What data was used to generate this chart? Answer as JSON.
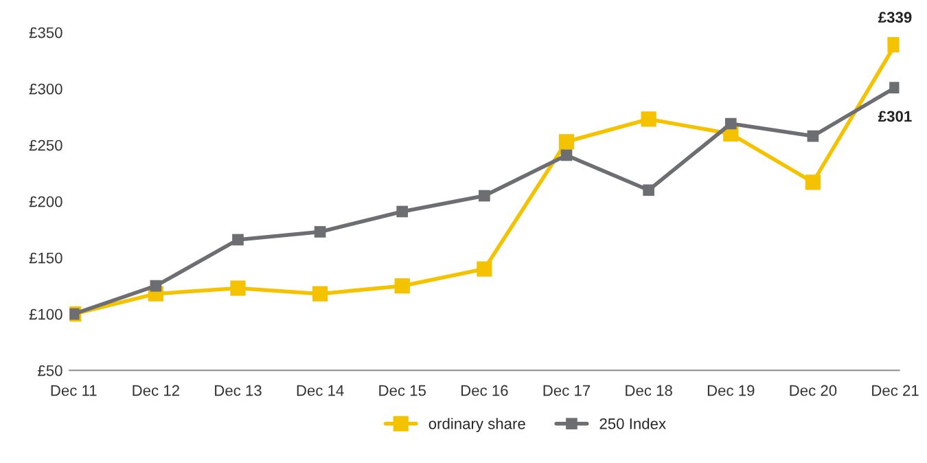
{
  "chart_data": {
    "type": "line",
    "categories": [
      "Dec 11",
      "Dec 12",
      "Dec 13",
      "Dec 14",
      "Dec 15",
      "Dec 16",
      "Dec 17",
      "Dec 18",
      "Dec 19",
      "Dec 20",
      "Dec 21"
    ],
    "series": [
      {
        "name": "ordinary share",
        "color": "#f5c200",
        "values": [
          100,
          118,
          123,
          118,
          125,
          140,
          253,
          273,
          260,
          217,
          339
        ],
        "value_labels": [
          null,
          null,
          null,
          null,
          null,
          null,
          null,
          null,
          null,
          null,
          "£339"
        ]
      },
      {
        "name": "250 Index",
        "color": "#6d6e71",
        "values": [
          100,
          125,
          166,
          173,
          191,
          205,
          241,
          210,
          269,
          258,
          301
        ],
        "value_labels": [
          null,
          null,
          null,
          null,
          null,
          null,
          null,
          null,
          null,
          null,
          "£301"
        ]
      }
    ],
    "ylim": [
      50,
      350
    ],
    "yticks": [
      {
        "value": 50,
        "label": "£50"
      },
      {
        "value": 100,
        "label": "£100"
      },
      {
        "value": 150,
        "label": "£150"
      },
      {
        "value": 200,
        "label": "£200"
      },
      {
        "value": 250,
        "label": "£250"
      },
      {
        "value": 300,
        "label": "£300"
      },
      {
        "value": 350,
        "label": "£350"
      }
    ],
    "marker": "square",
    "line_style": "solid",
    "legend": "bottom",
    "grid": false
  }
}
